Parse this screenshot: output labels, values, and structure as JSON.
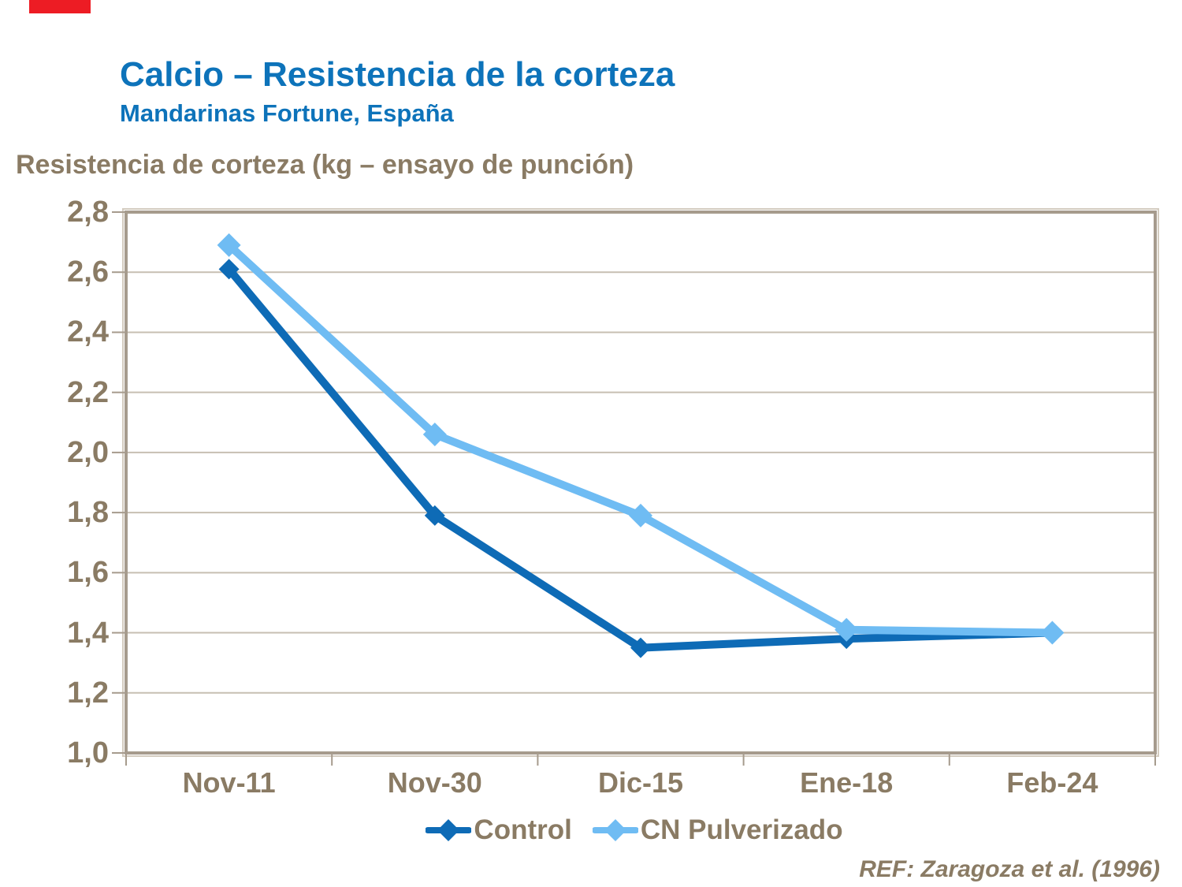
{
  "decor": {
    "red_bar_color": "#ed1c24"
  },
  "header": {
    "title": "Calcio – Resistencia de la corteza",
    "subtitle": "Mandarinas Fortune, España",
    "title_color": "#0d73ba"
  },
  "chart_data": {
    "type": "line",
    "axis_title": "Resistencia de corteza (kg – ensayo de punción)",
    "categories": [
      "Nov-11",
      "Nov-30",
      "Dic-15",
      "Ene-18",
      "Feb-24"
    ],
    "series": [
      {
        "name": "Control",
        "color": "#0e6bb6",
        "marker": "diamond",
        "values": [
          2.61,
          1.79,
          1.35,
          1.38,
          1.4
        ]
      },
      {
        "name": "CN Pulverizado",
        "color": "#6fbcf3",
        "marker": "diamond",
        "values": [
          2.69,
          2.06,
          1.79,
          1.41,
          1.4
        ]
      }
    ],
    "ylim": [
      1.0,
      2.8
    ],
    "ytick_step": 0.2,
    "y_tick_labels": [
      "1,0",
      "1,2",
      "1,4",
      "1,6",
      "1,8",
      "2,0",
      "2,2",
      "2,4",
      "2,6",
      "2,8"
    ],
    "grid": "horizontal",
    "legend_position": "bottom",
    "colors": {
      "text": "#8a7b64",
      "gridline": "#c7bfb2",
      "frame": "#a69b8d",
      "frame_highlight": "#d4ccc0"
    }
  },
  "footer": {
    "reference": "REF: Zaragoza et al. (1996)"
  }
}
